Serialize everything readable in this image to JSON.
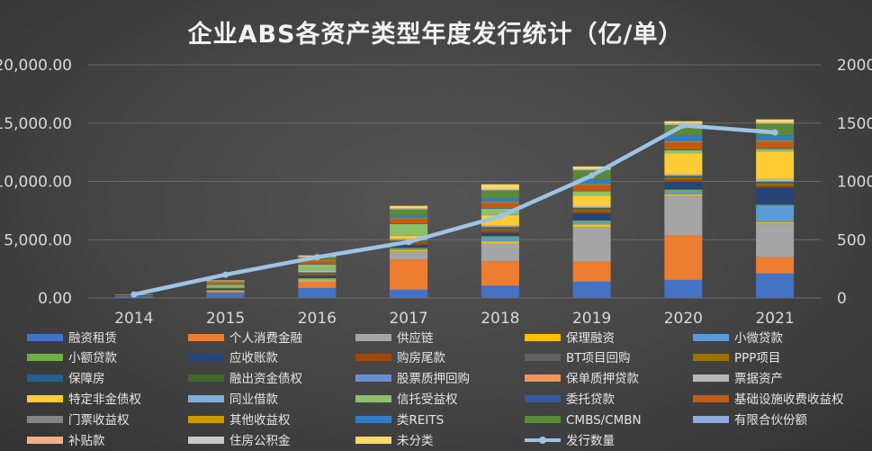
{
  "chart_data": {
    "type": "bar",
    "stacked": true,
    "title": "企业ABS各资产类型年度发行统计（亿/单）",
    "categories": [
      "2014",
      "2015",
      "2016",
      "2017",
      "2018",
      "2019",
      "2020",
      "2021"
    ],
    "left_axis": {
      "ylim": [
        0,
        20000
      ],
      "ticks": [
        0,
        5000,
        10000,
        15000,
        20000
      ],
      "tick_labels": [
        "0.00",
        "5,000.00",
        "10,000.00",
        "15,000.00",
        "20,000.00"
      ]
    },
    "right_axis": {
      "ylim": [
        0,
        2000
      ],
      "ticks": [
        0,
        500,
        1000,
        1500,
        2000
      ],
      "tick_labels": [
        "0",
        "500",
        "1000",
        "1500",
        "2000"
      ]
    },
    "grid": true,
    "legend_position": "bottom",
    "series": [
      {
        "name": "融资租赁",
        "color": "#4472C4",
        "values": [
          150,
          450,
          850,
          700,
          1050,
          1400,
          1550,
          2100
        ]
      },
      {
        "name": "个人消费金融",
        "color": "#ED7D31",
        "values": [
          0,
          100,
          500,
          2600,
          2100,
          1700,
          3800,
          1400
        ]
      },
      {
        "name": "供应链",
        "color": "#A5A5A5",
        "values": [
          0,
          30,
          150,
          700,
          1500,
          3000,
          3400,
          2900
        ]
      },
      {
        "name": "保理融资",
        "color": "#FFC000",
        "values": [
          0,
          30,
          80,
          120,
          200,
          200,
          150,
          100
        ]
      },
      {
        "name": "小微贷款",
        "color": "#5B9BD5",
        "values": [
          0,
          30,
          50,
          80,
          300,
          200,
          250,
          1400
        ]
      },
      {
        "name": "小额贷款",
        "color": "#70AD47",
        "values": [
          0,
          50,
          80,
          100,
          150,
          150,
          150,
          100
        ]
      },
      {
        "name": "应收账款",
        "color": "#264478",
        "values": [
          80,
          100,
          200,
          250,
          300,
          600,
          650,
          1500
        ]
      },
      {
        "name": "购房尾款",
        "color": "#9E480E",
        "values": [
          0,
          20,
          100,
          150,
          200,
          200,
          200,
          150
        ]
      },
      {
        "name": "BT项目回购",
        "color": "#636363",
        "values": [
          10,
          20,
          30,
          30,
          30,
          30,
          30,
          30
        ]
      },
      {
        "name": "PPP项目",
        "color": "#997300",
        "values": [
          0,
          10,
          50,
          80,
          100,
          100,
          150,
          150
        ]
      },
      {
        "name": "保障房",
        "color": "#255E91",
        "values": [
          0,
          20,
          40,
          60,
          80,
          80,
          80,
          80
        ]
      },
      {
        "name": "融出资金债权",
        "color": "#43682B",
        "values": [
          0,
          20,
          50,
          50,
          50,
          50,
          50,
          50
        ]
      },
      {
        "name": "股票质押回购",
        "color": "#698ED0",
        "values": [
          0,
          20,
          50,
          80,
          80,
          60,
          40,
          30
        ]
      },
      {
        "name": "保单质押贷款",
        "color": "#F1975A",
        "values": [
          0,
          0,
          20,
          30,
          30,
          30,
          30,
          30
        ]
      },
      {
        "name": "票据资产",
        "color": "#B7B7B7",
        "values": [
          0,
          0,
          20,
          50,
          80,
          80,
          80,
          200
        ]
      },
      {
        "name": "特定非金债权",
        "color": "#FFCD33",
        "values": [
          0,
          30,
          80,
          250,
          850,
          900,
          1800,
          2350
        ]
      },
      {
        "name": "同业借款",
        "color": "#7CAFDD",
        "values": [
          0,
          10,
          20,
          20,
          20,
          20,
          20,
          20
        ]
      },
      {
        "name": "信托受益权",
        "color": "#8CC168",
        "values": [
          30,
          200,
          500,
          1000,
          550,
          350,
          250,
          200
        ]
      },
      {
        "name": "委托贷款",
        "color": "#335AA1",
        "values": [
          0,
          20,
          30,
          50,
          50,
          50,
          50,
          50
        ]
      },
      {
        "name": "基础设施收费收益权",
        "color": "#C55A11",
        "values": [
          30,
          200,
          300,
          400,
          450,
          500,
          650,
          600
        ]
      },
      {
        "name": "门票收益权",
        "color": "#848484",
        "values": [
          0,
          10,
          20,
          20,
          20,
          20,
          20,
          20
        ]
      },
      {
        "name": "其他收益权",
        "color": "#CC9A00",
        "values": [
          0,
          10,
          30,
          40,
          50,
          50,
          50,
          50
        ]
      },
      {
        "name": "类REITS",
        "color": "#327DC2",
        "values": [
          0,
          30,
          80,
          200,
          300,
          400,
          500,
          450
        ]
      },
      {
        "name": "CMBS/CMBN",
        "color": "#5A8A39",
        "values": [
          0,
          50,
          200,
          550,
          700,
          800,
          900,
          1000
        ]
      },
      {
        "name": "有限合伙份额",
        "color": "#8FAADC",
        "values": [
          0,
          0,
          10,
          10,
          20,
          20,
          20,
          20
        ]
      },
      {
        "name": "补贴款",
        "color": "#F4B183",
        "values": [
          0,
          0,
          20,
          50,
          60,
          60,
          60,
          60
        ]
      },
      {
        "name": "住房公积金",
        "color": "#C9C9C9",
        "values": [
          0,
          10,
          30,
          30,
          30,
          30,
          30,
          30
        ]
      },
      {
        "name": "未分类",
        "color": "#FFD966",
        "values": [
          0,
          40,
          60,
          200,
          400,
          200,
          200,
          250
        ]
      }
    ],
    "line_series": {
      "name": "发行数量",
      "color": "#9DC3E6",
      "axis": "right",
      "values": [
        30,
        200,
        350,
        480,
        700,
        1050,
        1480,
        1420
      ]
    }
  }
}
